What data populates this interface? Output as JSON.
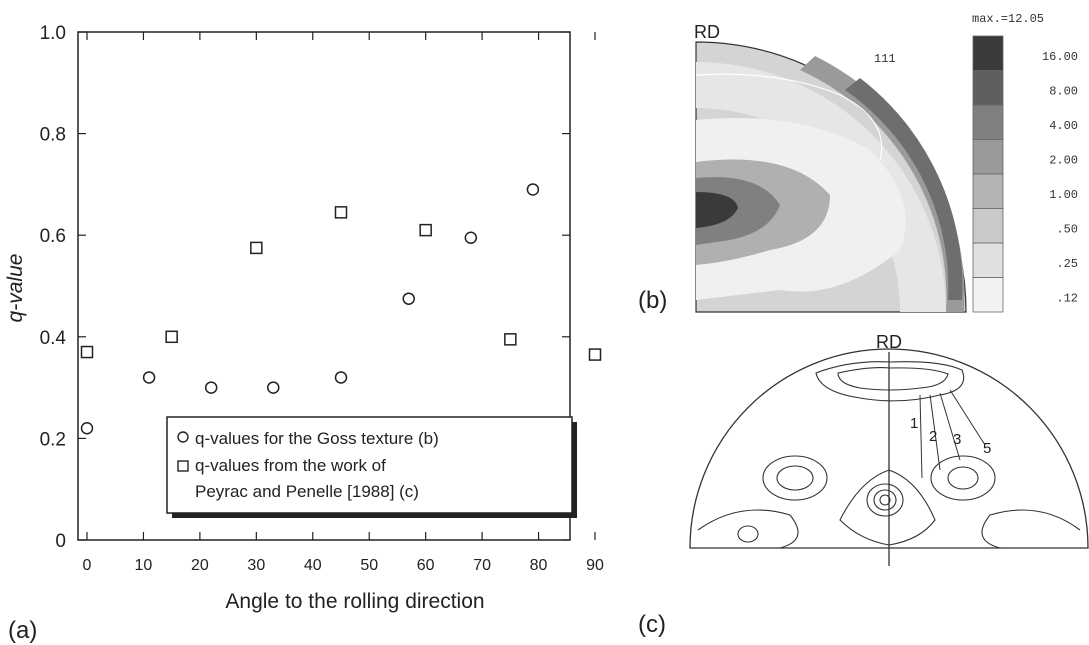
{
  "panels": {
    "a_label": "(a)",
    "b_label": "(b)",
    "c_label": "(c)"
  },
  "chart_data": {
    "type": "scatter",
    "title": "",
    "xlabel": "Angle to the rolling direction",
    "ylabel": "q-value",
    "xlim": [
      0,
      90
    ],
    "ylim": [
      0,
      1.0
    ],
    "x_ticks": [
      "0",
      "10",
      "20",
      "30",
      "40",
      "50",
      "60",
      "70",
      "80",
      "90"
    ],
    "y_ticks": [
      "0",
      "0.2",
      "0.4",
      "0.6",
      "0.8",
      "1.0"
    ],
    "grid": false,
    "legend_position": "bottom-center",
    "series": [
      {
        "name": "q-values for the Goss texture (b)",
        "marker": "circle",
        "points": [
          [
            0,
            0.22
          ],
          [
            11,
            0.32
          ],
          [
            22,
            0.3
          ],
          [
            33,
            0.3
          ],
          [
            45,
            0.32
          ],
          [
            57,
            0.475
          ],
          [
            68,
            0.595
          ],
          [
            79,
            0.69
          ]
        ]
      },
      {
        "name": "q-values from the work of Peyrac and Penelle [1988] (c)",
        "legend_lines": [
          "q-values from the work of",
          "Peyrac and Penelle [1988] (c)"
        ],
        "marker": "square",
        "points": [
          [
            0,
            0.37
          ],
          [
            15,
            0.4
          ],
          [
            30,
            0.575
          ],
          [
            45,
            0.645
          ],
          [
            60,
            0.61
          ],
          [
            75,
            0.395
          ],
          [
            90,
            0.365
          ]
        ]
      }
    ]
  },
  "pole_figure_b": {
    "direction_label": "RD",
    "plane_label": "111",
    "max_label": "max.=12.05",
    "legend_levels": [
      "16.00",
      "8.00",
      "4.00",
      "2.00",
      "1.00",
      ".50",
      ".25",
      ".12"
    ],
    "legend_colors": [
      "#3a3a3a",
      "#5e5e5e",
      "#808080",
      "#9a9a9a",
      "#b3b3b3",
      "#cacaca",
      "#e0e0e0",
      "#f2f2f2"
    ]
  },
  "pole_figure_c": {
    "direction_label": "RD",
    "contour_labels": [
      "1",
      "2",
      "3",
      "5"
    ]
  }
}
